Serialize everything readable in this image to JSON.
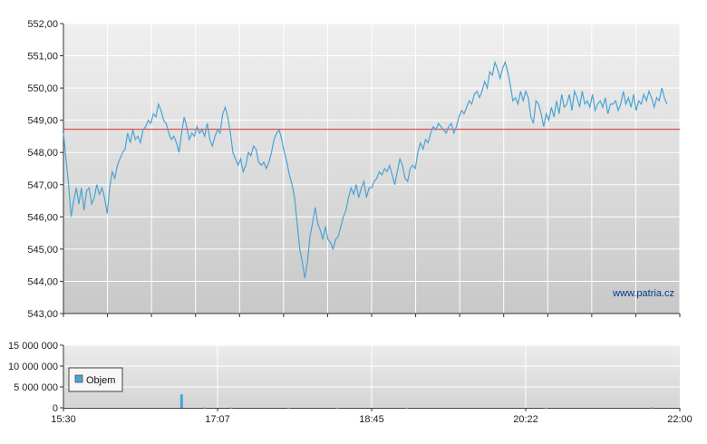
{
  "chart_data": [
    {
      "type": "line",
      "name": "price",
      "ylim": [
        543,
        552
      ],
      "y_ticks": [
        "543,00",
        "544,00",
        "545,00",
        "546,00",
        "547,00",
        "548,00",
        "549,00",
        "550,00",
        "551,00",
        "552,00"
      ],
      "reference_line": {
        "value": 548.72,
        "color": "#e05050"
      },
      "series": [
        {
          "color": "#4aa3d4",
          "points": [
            [
              0.0,
              548.6
            ],
            [
              0.3,
              547.8
            ],
            [
              0.6,
              547.0
            ],
            [
              0.9,
              546.0
            ],
            [
              1.2,
              546.5
            ],
            [
              1.5,
              546.9
            ],
            [
              1.8,
              546.4
            ],
            [
              2.1,
              546.9
            ],
            [
              2.4,
              546.2
            ],
            [
              2.7,
              546.8
            ],
            [
              3.0,
              546.9
            ],
            [
              3.3,
              546.4
            ],
            [
              3.6,
              546.6
            ],
            [
              3.9,
              547.0
            ],
            [
              4.2,
              546.7
            ],
            [
              4.5,
              546.9
            ],
            [
              4.8,
              546.6
            ],
            [
              5.1,
              546.1
            ],
            [
              5.4,
              546.9
            ],
            [
              5.7,
              547.4
            ],
            [
              6.0,
              547.2
            ],
            [
              6.3,
              547.6
            ],
            [
              6.6,
              547.8
            ],
            [
              6.9,
              548.0
            ],
            [
              7.2,
              548.1
            ],
            [
              7.5,
              548.6
            ],
            [
              7.8,
              548.3
            ],
            [
              8.1,
              548.7
            ],
            [
              8.4,
              548.4
            ],
            [
              8.7,
              548.5
            ],
            [
              9.0,
              548.3
            ],
            [
              9.3,
              548.7
            ],
            [
              9.6,
              548.8
            ],
            [
              9.9,
              549.0
            ],
            [
              10.2,
              548.9
            ],
            [
              10.5,
              549.2
            ],
            [
              10.8,
              549.1
            ],
            [
              11.1,
              549.5
            ],
            [
              11.4,
              549.3
            ],
            [
              11.7,
              549.0
            ],
            [
              12.0,
              548.9
            ],
            [
              12.3,
              548.6
            ],
            [
              12.6,
              548.4
            ],
            [
              12.9,
              548.5
            ],
            [
              13.2,
              548.3
            ],
            [
              13.5,
              548.0
            ],
            [
              13.8,
              548.6
            ],
            [
              14.1,
              549.1
            ],
            [
              14.4,
              548.8
            ],
            [
              14.7,
              548.4
            ],
            [
              15.0,
              548.6
            ],
            [
              15.3,
              548.5
            ],
            [
              15.6,
              548.8
            ],
            [
              15.9,
              548.6
            ],
            [
              16.2,
              548.7
            ],
            [
              16.5,
              548.5
            ],
            [
              16.8,
              548.9
            ],
            [
              17.1,
              548.4
            ],
            [
              17.4,
              548.2
            ],
            [
              17.7,
              548.5
            ],
            [
              18.0,
              548.7
            ],
            [
              18.3,
              548.6
            ],
            [
              18.6,
              549.2
            ],
            [
              18.9,
              549.4
            ],
            [
              19.2,
              549.1
            ],
            [
              19.5,
              548.6
            ],
            [
              19.8,
              548.0
            ],
            [
              20.1,
              547.8
            ],
            [
              20.4,
              547.6
            ],
            [
              20.7,
              547.8
            ],
            [
              21.0,
              547.4
            ],
            [
              21.3,
              547.6
            ],
            [
              21.6,
              548.0
            ],
            [
              21.9,
              547.9
            ],
            [
              22.2,
              548.2
            ],
            [
              22.5,
              548.1
            ],
            [
              22.8,
              547.7
            ],
            [
              23.1,
              547.6
            ],
            [
              23.4,
              547.7
            ],
            [
              23.7,
              547.5
            ],
            [
              24.0,
              547.7
            ],
            [
              24.3,
              548.0
            ],
            [
              24.6,
              548.4
            ],
            [
              24.9,
              548.6
            ],
            [
              25.2,
              548.7
            ],
            [
              25.5,
              548.4
            ],
            [
              25.8,
              548.0
            ],
            [
              26.1,
              547.7
            ],
            [
              26.4,
              547.3
            ],
            [
              26.7,
              547.0
            ],
            [
              27.0,
              546.6
            ],
            [
              27.3,
              545.8
            ],
            [
              27.6,
              545.0
            ],
            [
              27.9,
              544.6
            ],
            [
              28.2,
              544.1
            ],
            [
              28.5,
              544.6
            ],
            [
              28.8,
              545.4
            ],
            [
              29.1,
              545.8
            ],
            [
              29.4,
              546.3
            ],
            [
              29.7,
              545.8
            ],
            [
              30.0,
              545.6
            ],
            [
              30.3,
              545.3
            ],
            [
              30.6,
              545.7
            ],
            [
              30.9,
              545.3
            ],
            [
              31.2,
              545.2
            ],
            [
              31.5,
              545.0
            ],
            [
              31.8,
              545.3
            ],
            [
              32.1,
              545.4
            ],
            [
              32.4,
              545.7
            ],
            [
              32.7,
              546.0
            ],
            [
              33.0,
              546.2
            ],
            [
              33.3,
              546.6
            ],
            [
              33.6,
              546.9
            ],
            [
              33.9,
              546.7
            ],
            [
              34.2,
              547.0
            ],
            [
              34.5,
              546.6
            ],
            [
              34.8,
              546.9
            ],
            [
              35.1,
              547.1
            ],
            [
              35.4,
              546.6
            ],
            [
              35.7,
              546.9
            ],
            [
              36.0,
              546.9
            ],
            [
              36.3,
              547.1
            ],
            [
              36.6,
              547.2
            ],
            [
              36.9,
              547.4
            ],
            [
              37.2,
              547.3
            ],
            [
              37.5,
              547.5
            ],
            [
              37.8,
              547.4
            ],
            [
              38.1,
              547.6
            ],
            [
              38.4,
              547.3
            ],
            [
              38.7,
              547.0
            ],
            [
              39.0,
              547.4
            ],
            [
              39.3,
              547.8
            ],
            [
              39.6,
              547.6
            ],
            [
              39.9,
              547.2
            ],
            [
              40.2,
              547.1
            ],
            [
              40.5,
              547.5
            ],
            [
              40.8,
              547.6
            ],
            [
              41.1,
              547.5
            ],
            [
              41.4,
              548.0
            ],
            [
              41.7,
              548.3
            ],
            [
              42.0,
              548.1
            ],
            [
              42.3,
              548.4
            ],
            [
              42.6,
              548.3
            ],
            [
              42.9,
              548.6
            ],
            [
              43.2,
              548.8
            ],
            [
              43.5,
              548.7
            ],
            [
              43.8,
              548.9
            ],
            [
              44.1,
              548.8
            ],
            [
              44.4,
              548.7
            ],
            [
              44.7,
              548.6
            ],
            [
              45.0,
              548.8
            ],
            [
              45.3,
              548.9
            ],
            [
              45.6,
              548.6
            ],
            [
              45.9,
              548.8
            ],
            [
              46.2,
              549.1
            ],
            [
              46.5,
              549.3
            ],
            [
              46.8,
              549.2
            ],
            [
              47.1,
              549.4
            ],
            [
              47.4,
              549.6
            ],
            [
              47.7,
              549.5
            ],
            [
              48.0,
              549.8
            ],
            [
              48.3,
              549.9
            ],
            [
              48.6,
              549.7
            ],
            [
              48.9,
              549.9
            ],
            [
              49.2,
              550.2
            ],
            [
              49.5,
              550.0
            ],
            [
              49.8,
              550.5
            ],
            [
              50.1,
              550.4
            ],
            [
              50.4,
              550.8
            ],
            [
              50.7,
              550.6
            ],
            [
              51.0,
              550.3
            ],
            [
              51.3,
              550.6
            ],
            [
              51.6,
              550.8
            ],
            [
              51.9,
              550.5
            ],
            [
              52.2,
              550.1
            ],
            [
              52.5,
              549.6
            ],
            [
              52.8,
              549.7
            ],
            [
              53.1,
              549.5
            ],
            [
              53.4,
              549.9
            ],
            [
              53.7,
              549.6
            ],
            [
              54.0,
              549.9
            ],
            [
              54.3,
              549.7
            ],
            [
              54.6,
              549.1
            ],
            [
              54.9,
              548.9
            ],
            [
              55.2,
              549.6
            ],
            [
              55.5,
              549.5
            ],
            [
              55.8,
              549.2
            ],
            [
              56.1,
              548.8
            ],
            [
              56.4,
              549.2
            ],
            [
              56.7,
              549.0
            ],
            [
              57.0,
              549.4
            ],
            [
              57.3,
              549.1
            ],
            [
              57.6,
              549.6
            ],
            [
              57.9,
              549.2
            ],
            [
              58.2,
              549.8
            ],
            [
              58.5,
              549.4
            ],
            [
              58.8,
              549.5
            ],
            [
              59.1,
              549.8
            ],
            [
              59.4,
              549.3
            ],
            [
              59.7,
              549.9
            ],
            [
              60.0,
              549.7
            ],
            [
              60.3,
              549.4
            ],
            [
              60.6,
              549.9
            ],
            [
              60.9,
              549.5
            ],
            [
              61.2,
              549.6
            ],
            [
              61.5,
              549.4
            ],
            [
              61.8,
              549.8
            ],
            [
              62.1,
              549.3
            ],
            [
              62.4,
              549.5
            ],
            [
              62.7,
              549.6
            ],
            [
              63.0,
              549.4
            ],
            [
              63.3,
              549.7
            ],
            [
              63.6,
              549.2
            ],
            [
              63.9,
              549.5
            ],
            [
              64.2,
              549.5
            ],
            [
              64.5,
              549.6
            ],
            [
              64.8,
              549.3
            ],
            [
              65.1,
              549.5
            ],
            [
              65.4,
              549.9
            ],
            [
              65.7,
              549.5
            ],
            [
              66.0,
              549.7
            ],
            [
              66.3,
              549.4
            ],
            [
              66.6,
              549.8
            ],
            [
              66.9,
              549.3
            ],
            [
              67.2,
              549.6
            ],
            [
              67.5,
              549.5
            ],
            [
              67.8,
              549.8
            ],
            [
              68.1,
              549.6
            ],
            [
              68.4,
              549.9
            ],
            [
              68.7,
              549.7
            ],
            [
              69.0,
              549.4
            ],
            [
              69.3,
              549.7
            ],
            [
              69.6,
              549.6
            ],
            [
              69.9,
              550.0
            ],
            [
              70.2,
              549.7
            ],
            [
              70.5,
              549.5
            ]
          ]
        }
      ]
    },
    {
      "type": "bar",
      "name": "volume",
      "ylim": [
        0,
        15000000
      ],
      "y_ticks": [
        "0",
        "5 000 000",
        "10 000 000",
        "15 000 000"
      ],
      "legend": "Objem",
      "bar_color": "#4aa3d4",
      "values": [
        [
          13.8,
          3200000
        ],
        [
          16.5,
          60000
        ],
        [
          19.6,
          50000
        ],
        [
          26.3,
          40000
        ],
        [
          32.0,
          30000
        ],
        [
          40.1,
          30000
        ],
        [
          56.4,
          30000
        ],
        [
          68.7,
          80000
        ]
      ]
    }
  ],
  "x_ticks": [
    "15:30",
    "17:07",
    "18:45",
    "20:22",
    "22:00"
  ],
  "watermark": "www.patria.cz"
}
